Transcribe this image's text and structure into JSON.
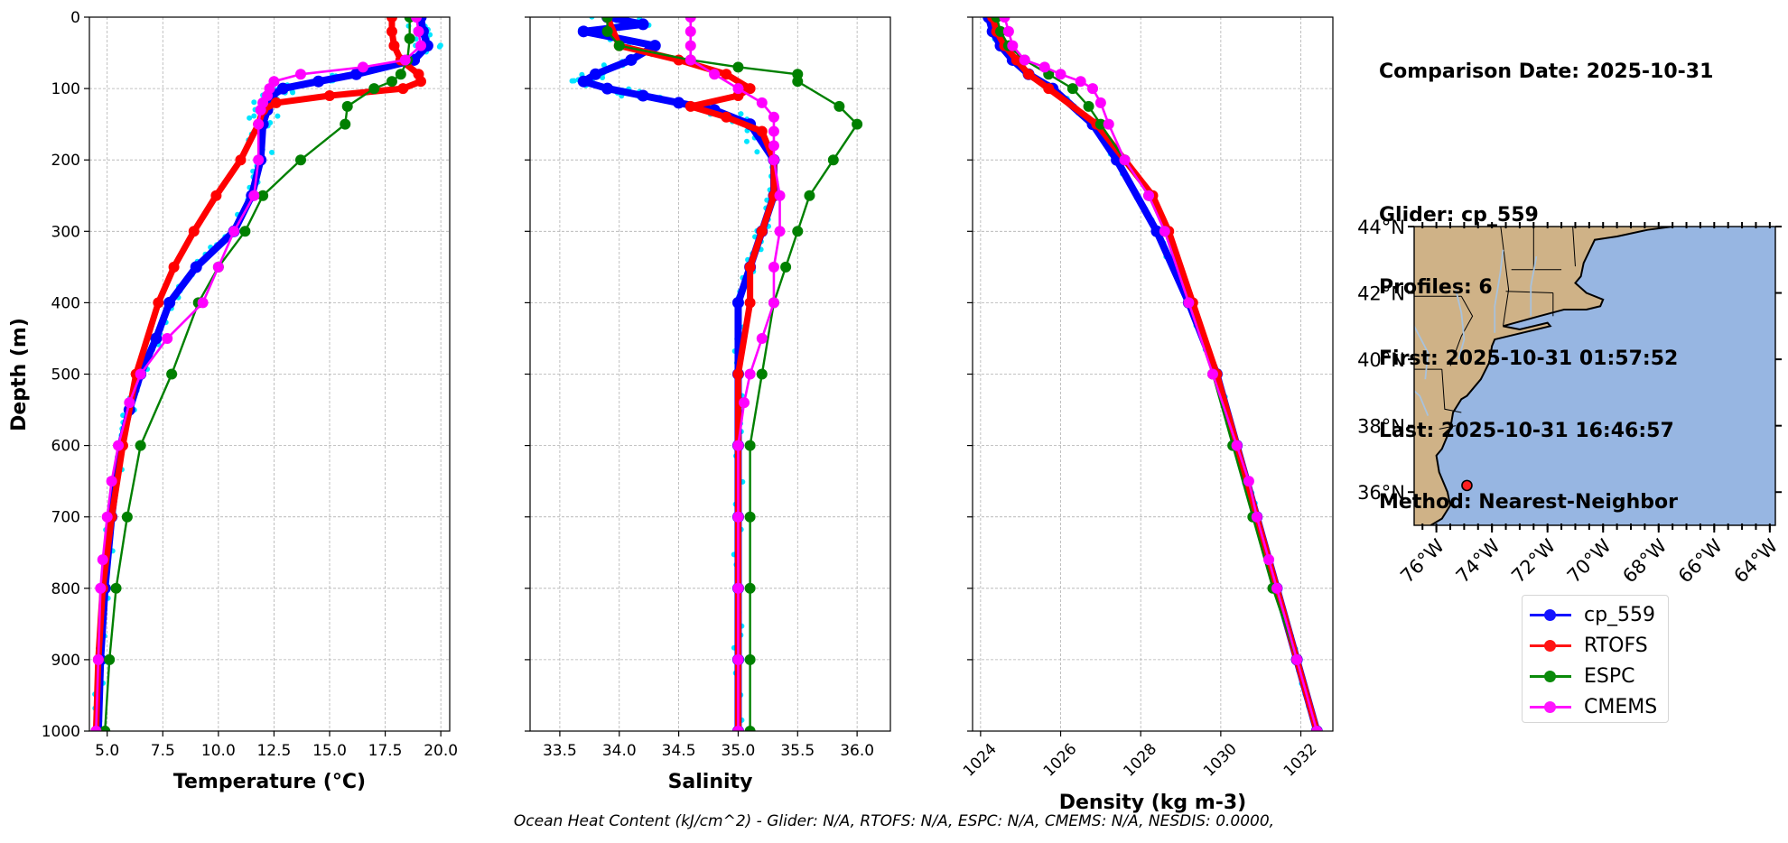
{
  "info": {
    "comparison_date": "Comparison Date: 2025-10-31",
    "glider": "Glider: cp_559",
    "profiles": "Profiles: 6",
    "first": "First: 2025-10-31 01:57:52",
    "last": "Last: 2025-10-31 16:46:57",
    "method": "Method: Nearest-Neighbor"
  },
  "footer": "Ocean Heat Content (kJ/cm^2) - Glider: N/A,  RTOFS: N/A,  ESPC: N/A,  CMEMS: N/A,  NESDIS: 0.0000,",
  "colors": {
    "cp_559": "#0000ff",
    "RTOFS": "#ff0000",
    "ESPC": "#008000",
    "CMEMS": "#ff00ff",
    "glider_raw": "#00e5ff",
    "land": "#cfb287",
    "ocean": "#97b6e2"
  },
  "legend": [
    {
      "name": "cp_559",
      "color": "#1414ff"
    },
    {
      "name": "RTOFS",
      "color": "#ff1414"
    },
    {
      "name": "ESPC",
      "color": "#0a8a0a"
    },
    {
      "name": "CMEMS",
      "color": "#ff14ff"
    }
  ],
  "chart_data": [
    {
      "type": "line",
      "xlabel": "Temperature (°C)",
      "ylabel": "Depth (m)",
      "xlim": [
        4.2,
        20.4
      ],
      "ylim": [
        1000,
        0
      ],
      "xticks": [
        "5.0",
        "7.5",
        "10.0",
        "12.5",
        "15.0",
        "17.5",
        "20.0"
      ],
      "yticks": [
        "0",
        "100",
        "200",
        "300",
        "400",
        "500",
        "600",
        "700",
        "800",
        "900",
        "1000"
      ],
      "grid": true,
      "series": [
        {
          "name": "cp_559",
          "depth": [
            0,
            20,
            40,
            60,
            80,
            90,
            100,
            110,
            130,
            150,
            200,
            250,
            300,
            350,
            400,
            450,
            500,
            550,
            600,
            700,
            800,
            900,
            1000
          ],
          "values": [
            19.1,
            19.2,
            19.4,
            18.8,
            16.2,
            14.5,
            12.9,
            12.4,
            12.2,
            12.0,
            11.9,
            11.5,
            10.7,
            9.0,
            7.8,
            7.2,
            6.5,
            6.0,
            5.6,
            5.2,
            4.9,
            4.7,
            4.6
          ]
        },
        {
          "name": "RTOFS",
          "depth": [
            0,
            20,
            40,
            60,
            80,
            90,
            100,
            110,
            120,
            130,
            150,
            200,
            250,
            300,
            350,
            400,
            500,
            600,
            700,
            800,
            900,
            1000
          ],
          "values": [
            17.8,
            17.8,
            17.9,
            18.2,
            19.0,
            19.1,
            18.3,
            15.0,
            12.6,
            12.0,
            11.8,
            11.0,
            9.9,
            8.9,
            8.0,
            7.3,
            6.3,
            5.7,
            5.2,
            4.8,
            4.6,
            4.5
          ]
        },
        {
          "name": "ESPC",
          "depth": [
            0,
            30,
            60,
            80,
            90,
            100,
            125,
            150,
            200,
            250,
            300,
            350,
            400,
            500,
            600,
            700,
            800,
            900,
            1000
          ],
          "values": [
            18.6,
            18.6,
            18.5,
            18.2,
            17.8,
            17.0,
            15.8,
            15.7,
            13.7,
            12.0,
            11.2,
            10.0,
            9.1,
            7.9,
            6.5,
            5.9,
            5.4,
            5.1,
            4.9
          ]
        },
        {
          "name": "CMEMS",
          "depth": [
            0,
            20,
            40,
            60,
            70,
            80,
            90,
            100,
            110,
            120,
            130,
            150,
            200,
            250,
            300,
            350,
            400,
            450,
            500,
            540,
            600,
            650,
            700,
            760,
            800,
            900,
            1000
          ],
          "values": [
            18.9,
            19.0,
            19.1,
            18.4,
            16.5,
            13.7,
            12.5,
            12.3,
            12.2,
            12.0,
            11.9,
            11.8,
            11.8,
            11.6,
            10.7,
            10.0,
            9.3,
            7.7,
            6.5,
            6.0,
            5.5,
            5.2,
            5.0,
            4.8,
            4.7,
            4.6,
            4.5
          ]
        }
      ]
    },
    {
      "type": "line",
      "xlabel": "Salinity",
      "xlim": [
        33.25,
        36.28
      ],
      "ylim": [
        1000,
        0
      ],
      "xticks": [
        "33.5",
        "34.0",
        "34.5",
        "35.0",
        "35.5",
        "36.0"
      ],
      "grid": true,
      "series": [
        {
          "name": "cp_559",
          "depth": [
            0,
            10,
            20,
            40,
            60,
            80,
            90,
            100,
            110,
            120,
            130,
            150,
            200,
            250,
            300,
            350,
            400,
            500,
            600,
            700,
            800,
            900,
            1000
          ],
          "values": [
            33.9,
            34.2,
            33.7,
            34.3,
            34.1,
            33.8,
            33.7,
            33.9,
            34.2,
            34.5,
            34.8,
            35.1,
            35.3,
            35.3,
            35.2,
            35.1,
            35.0,
            35.0,
            35.0,
            35.0,
            35.0,
            35.0,
            35.0
          ]
        },
        {
          "name": "RTOFS",
          "depth": [
            0,
            40,
            60,
            80,
            100,
            110,
            125,
            140,
            160,
            200,
            250,
            300,
            350,
            400,
            500,
            600,
            700,
            800,
            900,
            1000
          ],
          "values": [
            33.9,
            34.0,
            34.5,
            34.9,
            35.1,
            35.0,
            34.6,
            34.9,
            35.2,
            35.3,
            35.3,
            35.2,
            35.1,
            35.1,
            35.0,
            35.0,
            35.0,
            35.0,
            35.0,
            35.0
          ]
        },
        {
          "name": "ESPC",
          "depth": [
            0,
            20,
            40,
            60,
            70,
            80,
            90,
            125,
            150,
            200,
            250,
            300,
            350,
            400,
            500,
            600,
            700,
            800,
            900,
            1000
          ],
          "values": [
            33.9,
            33.9,
            34.0,
            34.6,
            35.0,
            35.5,
            35.5,
            35.85,
            36.0,
            35.8,
            35.6,
            35.5,
            35.4,
            35.3,
            35.2,
            35.1,
            35.1,
            35.1,
            35.1,
            35.1
          ]
        },
        {
          "name": "CMEMS",
          "depth": [
            0,
            20,
            40,
            60,
            80,
            100,
            120,
            140,
            160,
            180,
            200,
            250,
            300,
            350,
            400,
            450,
            500,
            540,
            600,
            700,
            800,
            900,
            1000
          ],
          "values": [
            34.6,
            34.6,
            34.6,
            34.6,
            34.8,
            35.0,
            35.2,
            35.3,
            35.3,
            35.3,
            35.3,
            35.35,
            35.35,
            35.3,
            35.3,
            35.2,
            35.1,
            35.05,
            35.0,
            35.0,
            35.0,
            35.0,
            35.0
          ]
        }
      ]
    },
    {
      "type": "line",
      "xlabel": "Density (kg m-3)",
      "xlim": [
        1023.8,
        1032.8
      ],
      "ylim": [
        1000,
        0
      ],
      "xticks": [
        "1024",
        "1026",
        "1028",
        "1030",
        "1032"
      ],
      "grid": true,
      "series": [
        {
          "name": "cp_559",
          "depth": [
            0,
            20,
            40,
            60,
            80,
            100,
            150,
            200,
            300,
            400,
            500,
            600,
            700,
            800,
            900,
            1000
          ],
          "values": [
            1024.2,
            1024.3,
            1024.5,
            1024.8,
            1025.2,
            1025.8,
            1026.8,
            1027.4,
            1028.4,
            1029.2,
            1029.9,
            1030.4,
            1030.9,
            1031.4,
            1031.9,
            1032.4
          ]
        },
        {
          "name": "RTOFS",
          "depth": [
            0,
            20,
            40,
            60,
            80,
            100,
            150,
            200,
            250,
            300,
            400,
            500,
            600,
            700,
            800,
            900,
            1000
          ],
          "values": [
            1024.3,
            1024.4,
            1024.6,
            1024.9,
            1025.2,
            1025.7,
            1026.9,
            1027.6,
            1028.3,
            1028.7,
            1029.3,
            1029.9,
            1030.4,
            1030.9,
            1031.4,
            1031.9,
            1032.4
          ]
        },
        {
          "name": "ESPC",
          "depth": [
            0,
            20,
            40,
            60,
            80,
            100,
            125,
            150,
            200,
            250,
            300,
            400,
            500,
            600,
            700,
            800,
            900,
            1000
          ],
          "values": [
            1024.4,
            1024.5,
            1024.7,
            1025.1,
            1025.7,
            1026.3,
            1026.7,
            1027.0,
            1027.6,
            1028.2,
            1028.6,
            1029.2,
            1029.8,
            1030.3,
            1030.8,
            1031.3,
            1031.9,
            1032.4
          ]
        },
        {
          "name": "CMEMS",
          "depth": [
            0,
            20,
            40,
            60,
            70,
            80,
            90,
            100,
            120,
            150,
            200,
            250,
            300,
            400,
            500,
            600,
            650,
            700,
            760,
            800,
            900,
            1000
          ],
          "values": [
            1024.6,
            1024.7,
            1024.8,
            1025.1,
            1025.6,
            1026.0,
            1026.5,
            1026.8,
            1027.0,
            1027.2,
            1027.6,
            1028.2,
            1028.6,
            1029.2,
            1029.8,
            1030.4,
            1030.7,
            1030.9,
            1031.2,
            1031.4,
            1031.9,
            1032.4
          ]
        }
      ]
    },
    {
      "type": "map",
      "lat_ticks": [
        "44°N",
        "42°N",
        "40°N",
        "38°N",
        "36°N"
      ],
      "lat_values": [
        44,
        42,
        40,
        38,
        36
      ],
      "lon_ticks": [
        "76°W",
        "74°W",
        "72°W",
        "70°W",
        "68°W",
        "66°W",
        "64°W"
      ],
      "lon_values": [
        -76,
        -74,
        -72,
        -70,
        -68,
        -66,
        -64
      ],
      "extent": {
        "lon": [
          -76.8,
          -63.8
        ],
        "lat": [
          35.0,
          44.0
        ]
      },
      "glider_position": {
        "lon": -74.9,
        "lat": 36.2
      }
    }
  ]
}
